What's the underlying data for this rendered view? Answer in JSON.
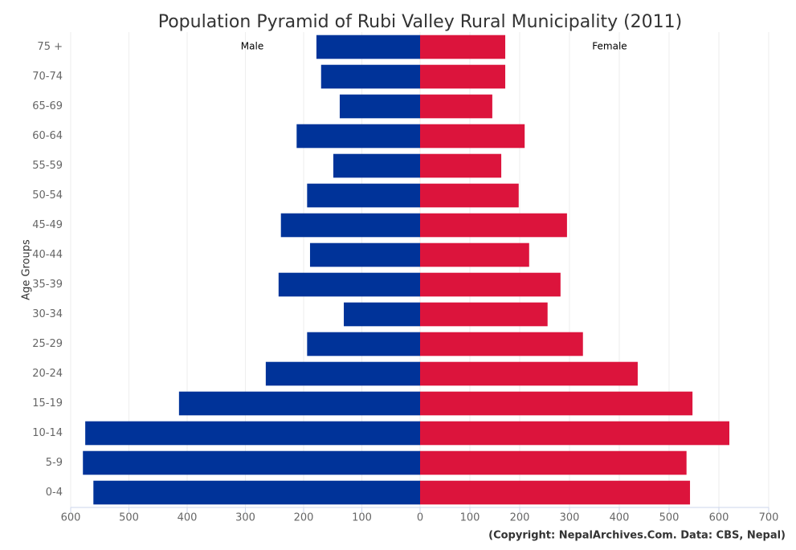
{
  "chart_data": {
    "type": "pyramid",
    "title": "Population Pyramid of Rubi Valley Rural Municipality (2011)",
    "y_label": "Age Groups",
    "credit": "(Copyright: NepalArchives.Com. Data: CBS, Nepal)",
    "categories": [
      "75 +",
      "70-74",
      "65-69",
      "60-64",
      "55-59",
      "50-54",
      "45-49",
      "40-44",
      "35-39",
      "30-34",
      "25-29",
      "20-24",
      "15-19",
      "10-14",
      "5-9",
      "0-4"
    ],
    "series": [
      {
        "name": "Male",
        "color": "#003399",
        "values": [
          178,
          170,
          138,
          212,
          149,
          194,
          239,
          189,
          243,
          131,
          194,
          265,
          414,
          575,
          579,
          561
        ]
      },
      {
        "name": "Female",
        "color": "#dc143c",
        "values": [
          171,
          171,
          145,
          210,
          163,
          198,
          295,
          219,
          282,
          256,
          327,
          437,
          547,
          621,
          535,
          542
        ]
      }
    ],
    "male_xlim": [
      600,
      0
    ],
    "male_xticks": [
      600,
      500,
      400,
      300,
      200,
      100,
      0
    ],
    "female_xlim": [
      0,
      700
    ],
    "female_xticks": [
      100,
      200,
      300,
      400,
      500,
      600,
      700
    ],
    "grid": true
  }
}
